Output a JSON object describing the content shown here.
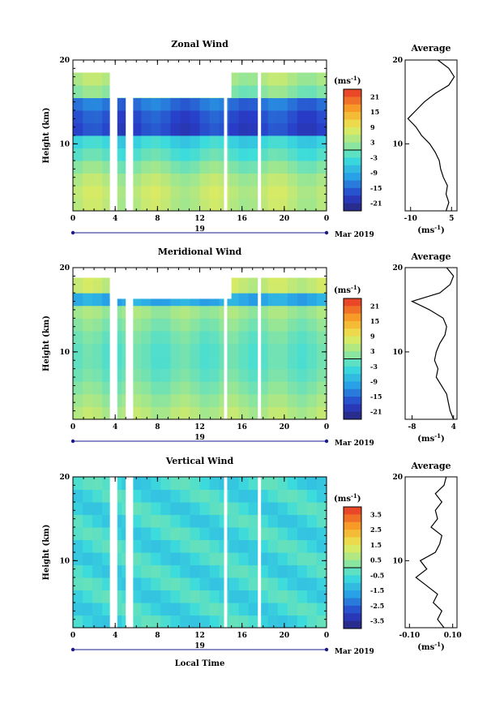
{
  "chart_data": [
    {
      "type": "heatmap",
      "title": "Zonal Wind",
      "ylabel": "Height (km)",
      "xlabel": "",
      "x_ticks": [
        "0",
        "4",
        "8",
        "12",
        "16",
        "20",
        "0"
      ],
      "y_ticks": [
        "20",
        "10"
      ],
      "xlim": [
        0,
        24
      ],
      "ylim": [
        2,
        20
      ],
      "day_label": "19",
      "date_label": "Mar 2019",
      "colorbar": {
        "unit_base": "(ms",
        "unit_exp": "-1",
        "unit_end": ")",
        "range": [
          -24,
          24
        ],
        "ticks": [
          "21",
          "15",
          "9",
          "3",
          "-3",
          "-9",
          "-15",
          "-21"
        ],
        "tick_values": [
          21,
          15,
          9,
          3,
          -3,
          -9,
          -15,
          -21
        ]
      },
      "profile": {
        "title": "Average",
        "x_ticks": [
          "-10",
          "5"
        ],
        "x_tick_values": [
          -10,
          5
        ],
        "xlim": [
          -12,
          7
        ],
        "xlabel_base": "(ms",
        "xlabel_exp": "-1",
        "xlabel_end": ")",
        "y_ticks": [
          "20",
          "10"
        ],
        "heights": [
          2,
          3,
          4,
          5,
          6,
          7,
          8,
          9,
          10,
          11,
          12,
          13,
          14,
          15,
          16,
          17,
          18,
          19,
          20
        ],
        "values": [
          3,
          4,
          3,
          3.5,
          2,
          1,
          0.5,
          -1,
          -3,
          -6,
          -8,
          -11,
          -8,
          -5,
          -1,
          4,
          6,
          4,
          0
        ]
      },
      "profile_scale": "linear"
    },
    {
      "type": "heatmap",
      "title": "Meridional Wind",
      "ylabel": "Height (km)",
      "xlabel": "",
      "x_ticks": [
        "0",
        "4",
        "8",
        "12",
        "16",
        "20",
        "0"
      ],
      "y_ticks": [
        "20",
        "10"
      ],
      "xlim": [
        0,
        24
      ],
      "ylim": [
        2,
        20
      ],
      "day_label": "19",
      "date_label": "Mar 2019",
      "colorbar": {
        "unit_base": "(ms",
        "unit_exp": "-1",
        "unit_end": ")",
        "range": [
          -24,
          24
        ],
        "ticks": [
          "21",
          "15",
          "9",
          "3",
          "-3",
          "-9",
          "-15",
          "-21"
        ],
        "tick_values": [
          21,
          15,
          9,
          3,
          -3,
          -9,
          -15,
          -21
        ]
      },
      "profile": {
        "title": "Average",
        "x_ticks": [
          "-8",
          "4"
        ],
        "x_tick_values": [
          -8,
          4
        ],
        "xlim": [
          -10,
          5
        ],
        "xlabel_base": "(ms",
        "xlabel_exp": "-1",
        "xlabel_end": ")",
        "y_ticks": [
          "20",
          "10"
        ],
        "heights": [
          2,
          3,
          4,
          5,
          6,
          7,
          8,
          9,
          10,
          11,
          12,
          13,
          14,
          15,
          16,
          17,
          18,
          19,
          20
        ],
        "values": [
          4,
          3,
          2.5,
          2,
          0.5,
          -1,
          -0.5,
          -1.5,
          -1,
          0,
          1.5,
          2,
          1,
          -3,
          -8,
          0,
          3,
          4,
          2
        ]
      },
      "profile_scale": "linear"
    },
    {
      "type": "heatmap",
      "title": "Vertical Wind",
      "ylabel": "Height (km)",
      "xlabel": "Local Time",
      "x_ticks": [
        "0",
        "4",
        "8",
        "12",
        "16",
        "20",
        "0"
      ],
      "y_ticks": [
        "20",
        "10"
      ],
      "xlim": [
        0,
        24
      ],
      "ylim": [
        2,
        20
      ],
      "day_label": "19",
      "date_label": "Mar 2019",
      "colorbar": {
        "unit_base": "(ms",
        "unit_exp": "-1",
        "unit_end": ")",
        "range": [
          -4,
          4
        ],
        "ticks": [
          "3.5",
          "2.5",
          "1.5",
          "0.5",
          "-0.5",
          "-1.5",
          "-2.5",
          "-3.5"
        ],
        "tick_values": [
          3.5,
          2.5,
          1.5,
          0.5,
          -0.5,
          -1.5,
          -2.5,
          -3.5
        ]
      },
      "profile": {
        "title": "Average",
        "x_ticks": [
          "-0.10",
          "0.10"
        ],
        "x_tick_values": [
          -0.1,
          0.1
        ],
        "xlim": [
          -0.12,
          0.12
        ],
        "xlabel_base": "(ms",
        "xlabel_exp": "-1",
        "xlabel_end": ")",
        "y_ticks": [
          "20",
          "10"
        ],
        "heights": [
          2,
          3,
          4,
          5,
          6,
          7,
          8,
          9,
          10,
          11,
          12,
          13,
          14,
          15,
          16,
          17,
          18,
          19,
          20
        ],
        "values": [
          0.06,
          0.03,
          0.05,
          0.01,
          0.03,
          -0.02,
          -0.07,
          -0.02,
          -0.05,
          0.02,
          0.04,
          0.05,
          0.0,
          0.03,
          0.02,
          0.05,
          0.02,
          0.06,
          0.07
        ]
      },
      "profile_scale": "linear"
    }
  ]
}
